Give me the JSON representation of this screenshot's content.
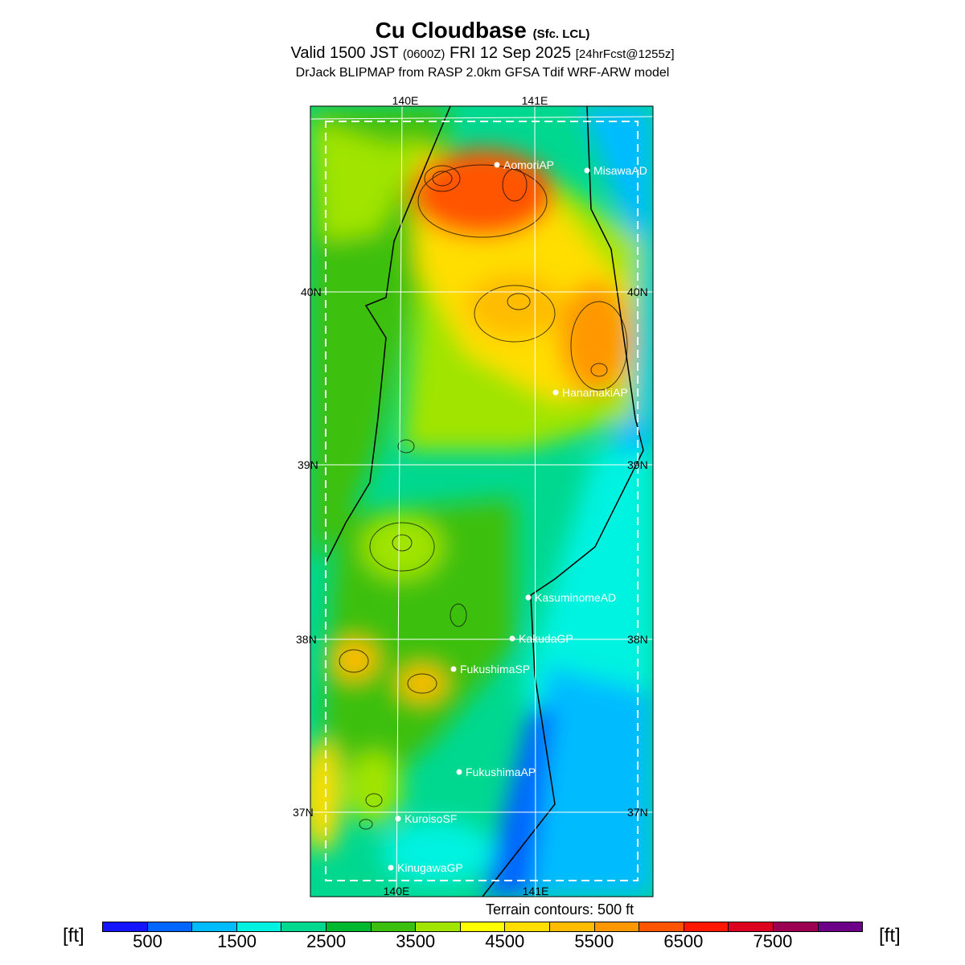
{
  "title": {
    "main": "Cu Cloudbase",
    "main_suffix": "(Sfc. LCL)",
    "valid_a": "Valid 1500 JST",
    "valid_z": "(0600Z)",
    "valid_b": "FRI 12 Sep 2025",
    "fcst": "[24hrFcst@1255z]",
    "model": "DrJack BLIPMAP from RASP 2.0km GFSA Tdif WRF-ARW model"
  },
  "axes": {
    "lon_labels": [
      "140E",
      "141E"
    ],
    "lat_labels": [
      "40N",
      "39N",
      "38N",
      "37N"
    ]
  },
  "stations": [
    {
      "name": "AomoriAP"
    },
    {
      "name": "MisawaAD"
    },
    {
      "name": "HanamakiAP"
    },
    {
      "name": "KasuminomeAD"
    },
    {
      "name": "KakudaGP"
    },
    {
      "name": "FukushimaSP"
    },
    {
      "name": "FukushimaAP"
    },
    {
      "name": "KuroisoSF"
    },
    {
      "name": "KinugawaGP"
    }
  ],
  "legend": {
    "terrain_note": "Terrain contours: 500 ft",
    "unit": "[ft]",
    "labels": [
      "500",
      "1500",
      "2500",
      "3500",
      "4500",
      "5500",
      "6500",
      "7500"
    ],
    "colors": [
      "#1414ff",
      "#0064ff",
      "#00bcff",
      "#00f2e0",
      "#00d890",
      "#00b830",
      "#3cc010",
      "#a0e400",
      "#ffff00",
      "#ffde00",
      "#ffbc00",
      "#ff9800",
      "#ff5400",
      "#ff1800",
      "#dc0020",
      "#9c0050",
      "#6c0088"
    ]
  }
}
